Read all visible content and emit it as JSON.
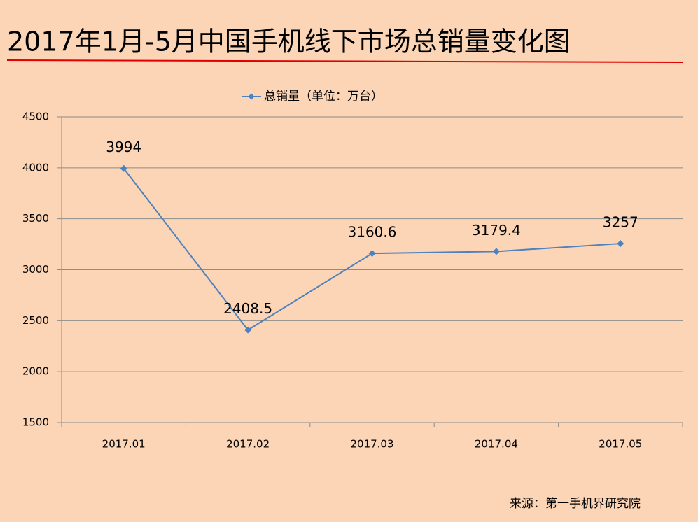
{
  "chart_data": {
    "type": "line",
    "title": "2017年1月-5月中国手机线下市场总销量变化图",
    "categories": [
      "2017.01",
      "2017.02",
      "2017.03",
      "2017.04",
      "2017.05"
    ],
    "series": [
      {
        "name": "总销量（单位：万台）",
        "color": "#4f81bd",
        "values": [
          3994,
          2408.5,
          3160.6,
          3179.4,
          3257
        ]
      }
    ],
    "ylim": [
      1500,
      4500
    ],
    "yticks": [
      1500,
      2000,
      2500,
      3000,
      3500,
      4000,
      4500
    ],
    "grid": true,
    "legend": "top",
    "source": "来源：第一手机界研究院"
  }
}
